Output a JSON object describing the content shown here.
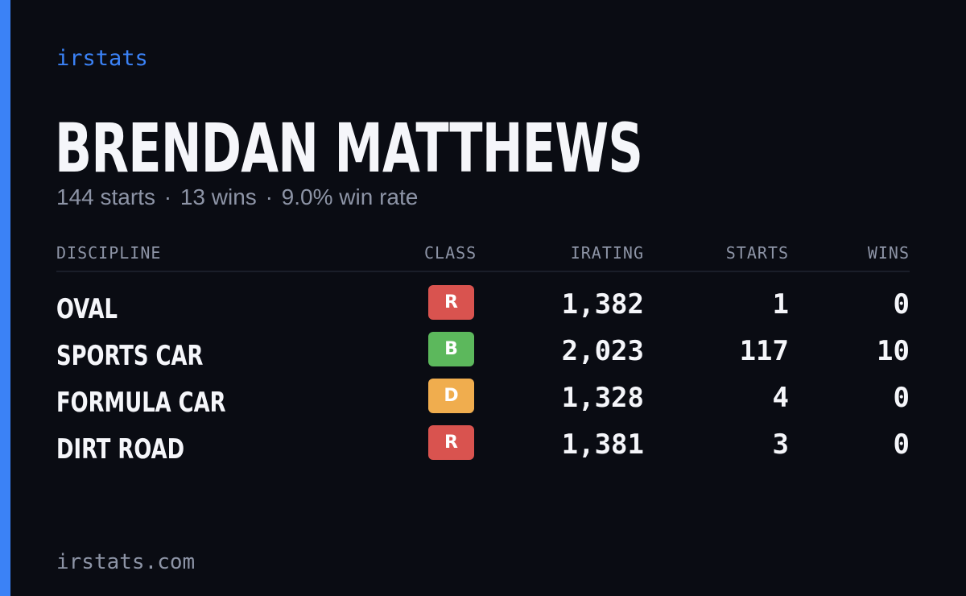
{
  "colors": {
    "accent": "#3b82f6",
    "background": "#0a0c13",
    "text_primary": "#f5f6fa",
    "text_muted": "#8d94a6"
  },
  "brand": "irstats",
  "driver": {
    "name": "BRENDAN MATTHEWS",
    "summary": {
      "starts": "144 starts",
      "wins": "13 wins",
      "win_rate": "9.0% win rate",
      "separator": "·"
    }
  },
  "table": {
    "headers": {
      "discipline": "DISCIPLINE",
      "class": "CLASS",
      "irating": "IRATING",
      "starts": "STARTS",
      "wins": "WINS"
    },
    "rows": [
      {
        "discipline": "OVAL",
        "class": "R",
        "class_color": "#d9534f",
        "irating": "1,382",
        "starts": "1",
        "wins": "0"
      },
      {
        "discipline": "SPORTS CAR",
        "class": "B",
        "class_color": "#5cb85c",
        "irating": "2,023",
        "starts": "117",
        "wins": "10"
      },
      {
        "discipline": "FORMULA CAR",
        "class": "D",
        "class_color": "#f0ad4e",
        "irating": "1,328",
        "starts": "4",
        "wins": "0"
      },
      {
        "discipline": "DIRT ROAD",
        "class": "R",
        "class_color": "#d9534f",
        "irating": "1,381",
        "starts": "3",
        "wins": "0"
      }
    ]
  },
  "footer": "irstats.com"
}
